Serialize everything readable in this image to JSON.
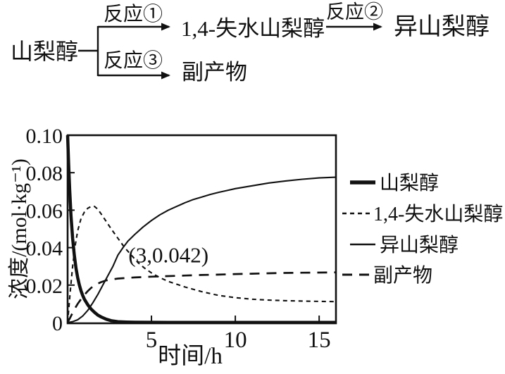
{
  "scheme": {
    "root": "山梨醇",
    "reaction1": "反应①",
    "reaction2": "反应②",
    "reaction3": "反应③",
    "product1": "1,4-失水山梨醇",
    "product2": "异山梨醇",
    "byproduct": "副产物"
  },
  "chart_data": {
    "type": "line",
    "title": "",
    "xlabel": "时间/h",
    "ylabel": "浓度/(mol·kg⁻¹)",
    "xlim": [
      0,
      16
    ],
    "ylim": [
      0,
      0.1
    ],
    "grid": false,
    "frame": "box",
    "legend_position": "right-outside",
    "x_ticks": [
      {
        "v": 5,
        "label": "5"
      },
      {
        "v": 10,
        "label": "10"
      },
      {
        "v": 15,
        "label": "15"
      }
    ],
    "y_ticks": [
      {
        "v": 0,
        "label": "0"
      },
      {
        "v": 0.02,
        "label": "0.02"
      },
      {
        "v": 0.04,
        "label": "0.04"
      },
      {
        "v": 0.06,
        "label": "0.06"
      },
      {
        "v": 0.08,
        "label": "0.08"
      },
      {
        "v": 0.1,
        "label": "0.10"
      }
    ],
    "annotation": {
      "text": "(3,0.042)",
      "x": 3,
      "y": 0.042
    },
    "series": [
      {
        "id": "sorbitol",
        "name": "山梨醇",
        "line_style": "thick-solid",
        "points": [
          [
            0,
            0.1
          ],
          [
            0.06,
            0.085
          ],
          [
            0.12,
            0.071
          ],
          [
            0.2,
            0.057
          ],
          [
            0.3,
            0.045
          ],
          [
            0.4,
            0.036
          ],
          [
            0.5,
            0.029
          ],
          [
            0.6,
            0.024
          ],
          [
            0.7,
            0.02
          ],
          [
            0.8,
            0.017
          ],
          [
            0.9,
            0.0145
          ],
          [
            1.0,
            0.0125
          ],
          [
            1.2,
            0.0095
          ],
          [
            1.4,
            0.0072
          ],
          [
            1.6,
            0.0055
          ],
          [
            1.8,
            0.004
          ],
          [
            2.0,
            0.003
          ],
          [
            2.3,
            0.0018
          ],
          [
            2.6,
            0.001
          ],
          [
            3.0,
            0.0005
          ],
          [
            3.5,
            0.0003
          ],
          [
            4,
            0.0002
          ],
          [
            6,
            0.0001
          ],
          [
            16,
            0.0001
          ]
        ]
      },
      {
        "id": "anhydrosorbitol",
        "name": "1,4-失水山梨醇",
        "line_style": "fine-dash",
        "points": [
          [
            0,
            0
          ],
          [
            0.15,
            0.016
          ],
          [
            0.3,
            0.03
          ],
          [
            0.45,
            0.041
          ],
          [
            0.6,
            0.049
          ],
          [
            0.8,
            0.0555
          ],
          [
            1.0,
            0.059
          ],
          [
            1.2,
            0.061
          ],
          [
            1.4,
            0.062
          ],
          [
            1.6,
            0.062
          ],
          [
            1.8,
            0.0605
          ],
          [
            2.0,
            0.058
          ],
          [
            2.3,
            0.054
          ],
          [
            2.6,
            0.05
          ],
          [
            3.0,
            0.045
          ],
          [
            3.4,
            0.04
          ],
          [
            3.8,
            0.036
          ],
          [
            4.2,
            0.032
          ],
          [
            4.6,
            0.029
          ],
          [
            5.0,
            0.0265
          ],
          [
            5.5,
            0.024
          ],
          [
            6,
            0.022
          ],
          [
            6.5,
            0.0205
          ],
          [
            7,
            0.019
          ],
          [
            8,
            0.0165
          ],
          [
            9,
            0.0145
          ],
          [
            10,
            0.0133
          ],
          [
            11,
            0.0125
          ],
          [
            12,
            0.012
          ],
          [
            13,
            0.0117
          ],
          [
            14,
            0.0115
          ],
          [
            15,
            0.0113
          ],
          [
            16,
            0.0112
          ]
        ]
      },
      {
        "id": "isosorbide",
        "name": "异山梨醇",
        "line_style": "thin-solid",
        "points": [
          [
            0,
            0
          ],
          [
            0.3,
            0.0005
          ],
          [
            0.6,
            0.0015
          ],
          [
            0.9,
            0.0035
          ],
          [
            1.2,
            0.0065
          ],
          [
            1.5,
            0.0105
          ],
          [
            1.8,
            0.015
          ],
          [
            2.1,
            0.02
          ],
          [
            2.4,
            0.025
          ],
          [
            2.7,
            0.03
          ],
          [
            3.0,
            0.036
          ],
          [
            3.3,
            0.04
          ],
          [
            3.6,
            0.0435
          ],
          [
            4.0,
            0.047
          ],
          [
            4.5,
            0.051
          ],
          [
            5.0,
            0.0545
          ],
          [
            5.5,
            0.0575
          ],
          [
            6,
            0.06
          ],
          [
            6.5,
            0.062
          ],
          [
            7,
            0.064
          ],
          [
            7.5,
            0.0657
          ],
          [
            8,
            0.067
          ],
          [
            8.5,
            0.0684
          ],
          [
            9,
            0.0695
          ],
          [
            9.5,
            0.0705
          ],
          [
            10,
            0.0715
          ],
          [
            11,
            0.073
          ],
          [
            12,
            0.0745
          ],
          [
            13,
            0.0756
          ],
          [
            14,
            0.0765
          ],
          [
            15,
            0.0772
          ],
          [
            16,
            0.0776
          ]
        ]
      },
      {
        "id": "byproduct",
        "name": "副产物",
        "line_style": "long-dash",
        "points": [
          [
            0,
            0
          ],
          [
            0.2,
            0.0035
          ],
          [
            0.4,
            0.007
          ],
          [
            0.6,
            0.01
          ],
          [
            0.8,
            0.0125
          ],
          [
            1.0,
            0.0148
          ],
          [
            1.2,
            0.0168
          ],
          [
            1.4,
            0.0185
          ],
          [
            1.6,
            0.0198
          ],
          [
            1.8,
            0.0208
          ],
          [
            2.0,
            0.0216
          ],
          [
            2.3,
            0.0225
          ],
          [
            2.6,
            0.023
          ],
          [
            3.0,
            0.0235
          ],
          [
            3.5,
            0.0238
          ],
          [
            4,
            0.0241
          ],
          [
            5,
            0.0245
          ],
          [
            6,
            0.0248
          ],
          [
            7,
            0.0251
          ],
          [
            8,
            0.0254
          ],
          [
            9,
            0.0256
          ],
          [
            10,
            0.0259
          ],
          [
            11,
            0.0261
          ],
          [
            12,
            0.0263
          ],
          [
            13,
            0.0265
          ],
          [
            14,
            0.0266
          ],
          [
            15,
            0.0267
          ],
          [
            16,
            0.0268
          ]
        ]
      }
    ]
  },
  "colors": {
    "ink": "#111111",
    "background": "#ffffff"
  }
}
